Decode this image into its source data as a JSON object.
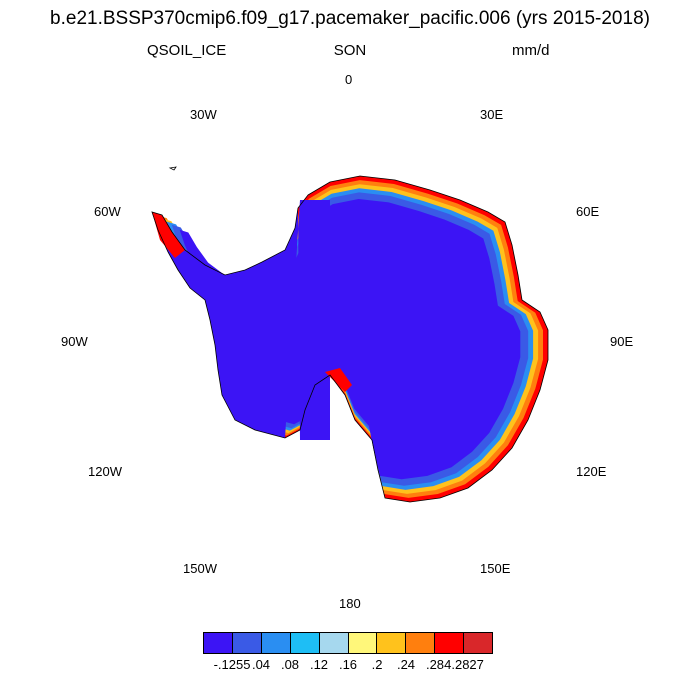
{
  "title": "b.e21.BSSP370cmip6.f09_g17.pacemaker_pacific.006 (yrs 2015-2018)",
  "variable": "QSOIL_ICE",
  "season": "SON",
  "units": "mm/d",
  "longitude_labels": {
    "lon_0": "0",
    "lon_30e": "30E",
    "lon_60e": "60E",
    "lon_90e": "90E",
    "lon_120e": "120E",
    "lon_150e": "150E",
    "lon_180": "180",
    "lon_150w": "150W",
    "lon_120w": "120W",
    "lon_90w": "90W",
    "lon_60w": "60W",
    "lon_30w": "30W"
  },
  "colorbar": {
    "colors": [
      "#3c14f5",
      "#3a5ae6",
      "#2a8ef2",
      "#1ebef5",
      "#a6d8ee",
      "#fff77a",
      "#ffc21c",
      "#ff7f0e",
      "#ff0000",
      "#d9272a"
    ],
    "labels": [
      "-.1255",
      ".04",
      ".08",
      ".12",
      ".16",
      ".2",
      ".24",
      ".28",
      "4.2827"
    ]
  },
  "map_colors": {
    "interior": "#3c14f5",
    "ring_mid": "#3a5ae6",
    "ring_light": "#2a8ef2",
    "coast_red": "#ff0000",
    "coast_orange": "#ff7f0e",
    "coast_yellow": "#ffc21c"
  }
}
